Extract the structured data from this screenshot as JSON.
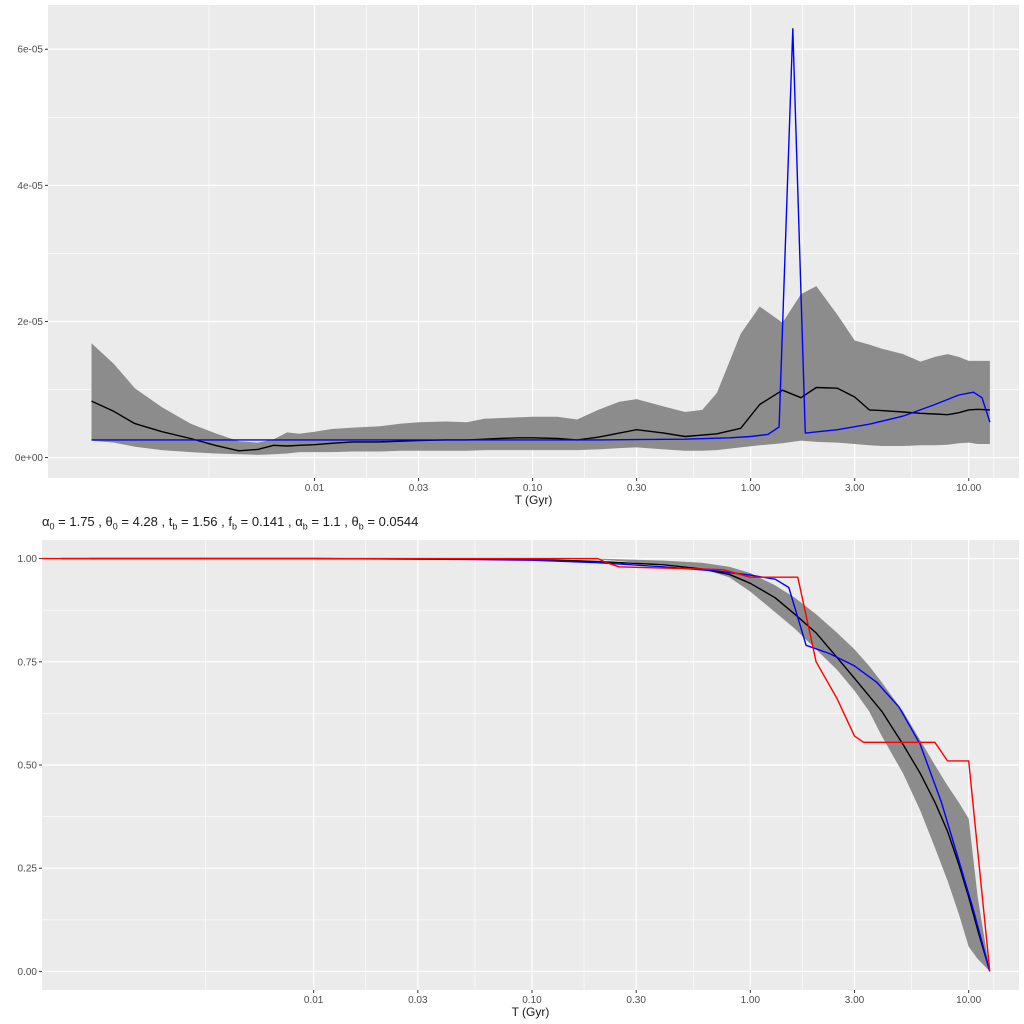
{
  "subtitle": {
    "alpha0_label": "α",
    "alpha0_sub": "0",
    "alpha0_value": "= 1.75 ,",
    "theta0_label": "θ",
    "theta0_sub": "0",
    "theta0_value": "= 4.28 ,",
    "tb_label": "t",
    "tb_sub": "b",
    "tb_value": "= 1.56 ,",
    "fb_label": "f",
    "fb_sub": "b",
    "fb_value": "= 0.141 ,",
    "alphab_label": "α",
    "alphab_sub": "b",
    "alphab_value": "= 1.1 ,",
    "thetab_label": "θ",
    "thetab_sub": "b",
    "thetab_value": "= 0.0544"
  },
  "chart_data": [
    {
      "type": "line",
      "title": "",
      "xlabel": "T (Gyr)",
      "ylabel": "",
      "x_scale": "log10",
      "xlim": [
        0.0006,
        17
      ],
      "ylim": [
        -3e-06,
        6.65e-05
      ],
      "x_ticks": [
        0.01,
        0.03,
        0.1,
        0.3,
        1,
        3,
        10
      ],
      "x_tick_labels": [
        "0.01",
        "0.03",
        "0.10",
        "0.30",
        "1.00",
        "3.00",
        "10.00"
      ],
      "y_ticks": [
        0,
        2e-05,
        4e-05,
        6e-05
      ],
      "y_tick_labels": [
        "0e+00",
        "2e-05",
        "4e-05",
        "6e-05"
      ],
      "colors": {
        "band": "#8c8c8c",
        "median": "#000000",
        "model": "#0000ff",
        "panel": "#ebebeb",
        "grid": "#ffffff"
      },
      "band": {
        "x": [
          0.00095,
          0.0012,
          0.0015,
          0.002,
          0.0027,
          0.0035,
          0.0045,
          0.0055,
          0.0065,
          0.0075,
          0.0085,
          0.01,
          0.012,
          0.015,
          0.02,
          0.025,
          0.03,
          0.04,
          0.05,
          0.06,
          0.07,
          0.085,
          0.1,
          0.13,
          0.16,
          0.2,
          0.25,
          0.3,
          0.4,
          0.5,
          0.6,
          0.7,
          0.9,
          1.1,
          1.4,
          1.7,
          2.0,
          2.5,
          3.0,
          3.5,
          4.0,
          5.0,
          6.0,
          7.0,
          8.0,
          9.0,
          10.0,
          11.0,
          12.5
        ],
        "low": [
          2.5e-06,
          2.2e-06,
          1.6e-06,
          1.1e-06,
          8e-07,
          6e-07,
          5e-07,
          4e-07,
          5e-07,
          6e-07,
          8e-07,
          8e-07,
          8e-07,
          9e-07,
          9e-07,
          1e-06,
          1e-06,
          1e-06,
          1e-06,
          1.1e-06,
          1.1e-06,
          1.1e-06,
          1.1e-06,
          1.1e-06,
          1.1e-06,
          1.2e-06,
          1.4e-06,
          1.5e-06,
          1.2e-06,
          1e-06,
          1e-06,
          1.1e-06,
          1.5e-06,
          1.8e-06,
          2.1e-06,
          2.5e-06,
          2.3e-06,
          2.2e-06,
          2e-06,
          1.8e-06,
          1.7e-06,
          1.7e-06,
          1.8e-06,
          1.8e-06,
          1.9e-06,
          2.1e-06,
          2.2e-06,
          2e-06,
          2e-06
        ],
        "high": [
          1.68e-05,
          1.38e-05,
          1.02e-05,
          7.4e-06,
          5e-06,
          3.6e-06,
          2.4e-06,
          2.2e-06,
          2.7e-06,
          3.7e-06,
          3.5e-06,
          3.8e-06,
          4.2e-06,
          4.4e-06,
          4.6e-06,
          5e-06,
          5.2e-06,
          5.3e-06,
          5.2e-06,
          5.7e-06,
          5.8e-06,
          5.9e-06,
          6e-06,
          6e-06,
          5.6e-06,
          7e-06,
          8.2e-06,
          8.6e-06,
          7.5e-06,
          6.7e-06,
          7e-06,
          9.5e-06,
          1.82e-05,
          2.22e-05,
          1.98e-05,
          2.4e-05,
          2.52e-05,
          2.1e-05,
          1.72e-05,
          1.66e-05,
          1.6e-05,
          1.52e-05,
          1.41e-05,
          1.48e-05,
          1.52e-05,
          1.48e-05,
          1.42e-05,
          1.42e-05,
          1.42e-05
        ]
      },
      "series": [
        {
          "x": [
            0.00095,
            0.0012,
            0.0015,
            0.002,
            0.0027,
            0.0035,
            0.0045,
            0.0055,
            0.0065,
            0.0075,
            0.0085,
            0.01,
            0.012,
            0.015,
            0.02,
            0.025,
            0.03,
            0.04,
            0.05,
            0.06,
            0.07,
            0.085,
            0.1,
            0.13,
            0.16,
            0.2,
            0.25,
            0.3,
            0.4,
            0.5,
            0.6,
            0.7,
            0.9,
            1.1,
            1.4,
            1.7,
            2.0,
            2.5,
            3.0,
            3.5,
            4.0,
            5.0,
            6.0,
            7.0,
            8.0,
            9.0,
            10.0,
            11.0,
            12.5
          ],
          "values": [
            8.3e-06,
            6.8e-06,
            5e-06,
            3.8e-06,
            2.8e-06,
            1.8e-06,
            1e-06,
            1.2e-06,
            1.8e-06,
            1.7e-06,
            1.8e-06,
            1.9e-06,
            2.1e-06,
            2.3e-06,
            2.3e-06,
            2.4e-06,
            2.5e-06,
            2.6e-06,
            2.6e-06,
            2.7e-06,
            2.8e-06,
            2.9e-06,
            2.9e-06,
            2.8e-06,
            2.6e-06,
            3e-06,
            3.6e-06,
            4.1e-06,
            3.6e-06,
            3.1e-06,
            3.3e-06,
            3.5e-06,
            4.3e-06,
            7.8e-06,
            9.9e-06,
            8.8e-06,
            1.03e-05,
            1.02e-05,
            8.9e-06,
            7e-06,
            6.9e-06,
            6.7e-06,
            6.5e-06,
            6.4e-06,
            6.3e-06,
            6.6e-06,
            7e-06,
            7.1e-06,
            7e-06
          ]
        },
        {
          "x": [
            0.00095,
            0.002,
            0.005,
            0.01,
            0.05,
            0.2,
            0.5,
            0.8,
            1.0,
            1.2,
            1.35,
            1.56,
            1.78,
            2.5,
            3.5,
            5.0,
            7.0,
            9.0,
            10.5,
            11.5,
            12.5
          ],
          "values": [
            2.6e-06,
            2.6e-06,
            2.6e-06,
            2.6e-06,
            2.6e-06,
            2.6e-06,
            2.7e-06,
            2.9e-06,
            3.1e-06,
            3.4e-06,
            4.5e-06,
            6.3e-05,
            3.6e-06,
            4.1e-06,
            4.9e-06,
            6.1e-06,
            7.8e-06,
            9.2e-06,
            9.6e-06,
            8.8e-06,
            5.2e-06
          ]
        }
      ]
    },
    {
      "type": "line",
      "title": "",
      "xlabel": "T (Gyr)",
      "ylabel": "",
      "x_scale": "log10",
      "xlim": [
        0.00057,
        17
      ],
      "ylim": [
        -0.045,
        1.045
      ],
      "x_ticks": [
        0.01,
        0.03,
        0.1,
        0.3,
        1,
        3,
        10
      ],
      "x_tick_labels": [
        "0.01",
        "0.03",
        "0.10",
        "0.30",
        "1.00",
        "3.00",
        "10.00"
      ],
      "y_ticks": [
        0,
        0.25,
        0.5,
        0.75,
        1.0
      ],
      "y_tick_labels": [
        "0.00",
        "0.25",
        "0.50",
        "0.75",
        "1.00"
      ],
      "colors": {
        "band": "#8c8c8c",
        "median": "#000000",
        "model": "#0000ff",
        "data": "#ff0000",
        "panel": "#ebebeb",
        "grid": "#ffffff"
      },
      "band": {
        "x": [
          0.09,
          0.2,
          0.4,
          0.6,
          0.8,
          1.0,
          1.3,
          1.6,
          2.0,
          2.5,
          3.0,
          3.5,
          4.0,
          5.0,
          6.0,
          7.0,
          8.0,
          9.0,
          10.0,
          11.0,
          12.5
        ],
        "low": [
          1.0,
          0.998,
          0.985,
          0.975,
          0.955,
          0.92,
          0.87,
          0.83,
          0.78,
          0.73,
          0.68,
          0.63,
          0.57,
          0.48,
          0.39,
          0.3,
          0.22,
          0.14,
          0.06,
          0.03,
          0.0
        ],
        "high": [
          1.0,
          1.0,
          0.995,
          0.99,
          0.98,
          0.965,
          0.935,
          0.905,
          0.865,
          0.82,
          0.78,
          0.74,
          0.7,
          0.63,
          0.56,
          0.5,
          0.45,
          0.41,
          0.37,
          0.18,
          0.0
        ]
      },
      "series": [
        {
          "x": [
            0.0007,
            0.01,
            0.05,
            0.1,
            0.2,
            0.4,
            0.6,
            0.8,
            1.0,
            1.3,
            1.6,
            2.0,
            2.5,
            3.0,
            4.0,
            5.0,
            6.0,
            7.0,
            8.0,
            9.0,
            10.0,
            11.0,
            12.5
          ],
          "values": [
            1.0,
            1.0,
            0.999,
            0.998,
            0.993,
            0.985,
            0.975,
            0.962,
            0.94,
            0.905,
            0.865,
            0.82,
            0.76,
            0.71,
            0.63,
            0.55,
            0.48,
            0.41,
            0.34,
            0.26,
            0.18,
            0.1,
            0.0
          ]
        },
        {
          "x": [
            0.00095,
            0.01,
            0.05,
            0.1,
            0.2,
            0.4,
            0.7,
            1.0,
            1.3,
            1.5,
            1.8,
            2.3,
            3.0,
            3.8,
            4.8,
            6.0,
            7.5,
            9.0,
            10.5,
            12.5
          ],
          "values": [
            1.0,
            1.0,
            0.998,
            0.996,
            0.99,
            0.98,
            0.97,
            0.96,
            0.95,
            0.93,
            0.79,
            0.77,
            0.74,
            0.7,
            0.64,
            0.55,
            0.41,
            0.27,
            0.15,
            0.0
          ]
        },
        {
          "x": [
            0.00057,
            0.0007,
            0.01,
            0.05,
            0.1,
            0.2,
            0.22,
            0.25,
            0.4,
            0.6,
            0.75,
            1.0,
            1.2,
            1.5,
            1.65,
            2.0,
            2.5,
            3.0,
            3.3,
            4.0,
            5.0,
            6.0,
            7.0,
            8.0,
            9.5,
            10.0,
            12.5
          ],
          "values": [
            1.0,
            1.0,
            1.0,
            1.0,
            1.0,
            1.0,
            0.99,
            0.98,
            0.977,
            0.975,
            0.973,
            0.955,
            0.955,
            0.955,
            0.955,
            0.75,
            0.66,
            0.57,
            0.555,
            0.555,
            0.555,
            0.555,
            0.555,
            0.51,
            0.51,
            0.51,
            0.0
          ]
        }
      ]
    }
  ]
}
